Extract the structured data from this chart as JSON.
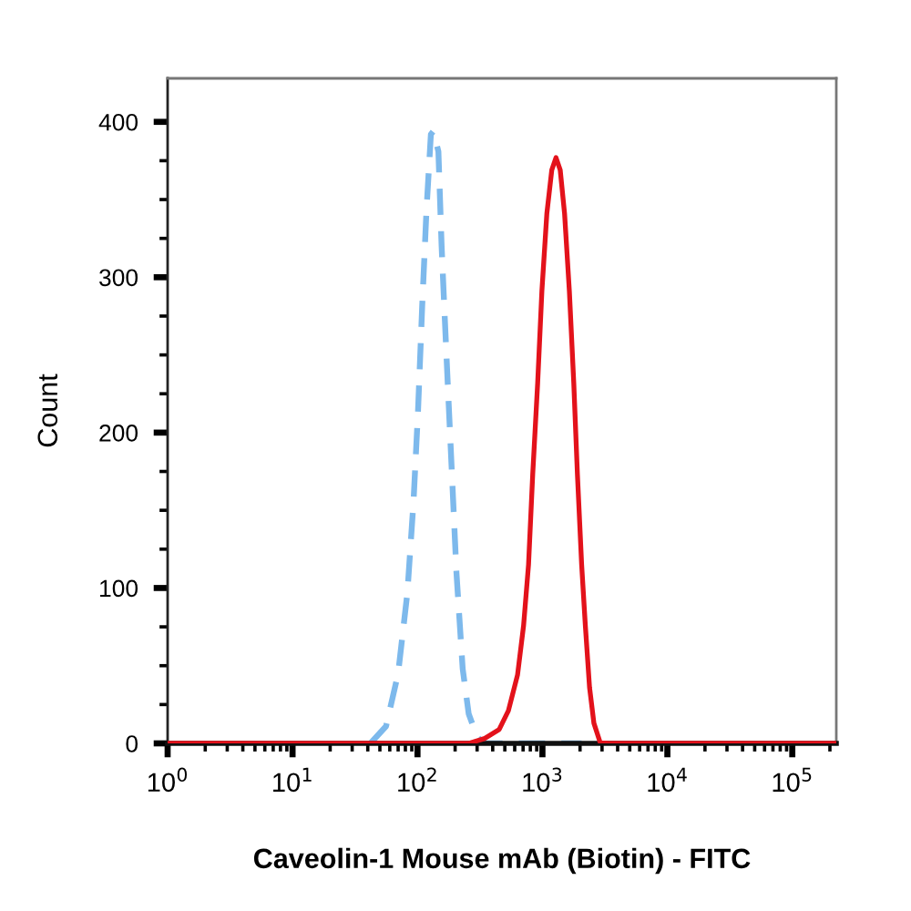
{
  "chart_data": {
    "type": "line",
    "xlabel": "Caveolin-1 Mouse mAb (Biotin) - FITC",
    "ylabel": "Count",
    "log": "x",
    "xlim": [
      1,
      225000
    ],
    "ylim": [
      0,
      428
    ],
    "xticks": [
      {
        "value": 1,
        "label": "10$^{0}$"
      },
      {
        "value": 2,
        "label": null
      },
      {
        "value": 3,
        "label": null
      },
      {
        "value": 4,
        "label": null
      },
      {
        "value": 5,
        "label": null
      },
      {
        "value": 6,
        "label": null
      },
      {
        "value": 7,
        "label": null
      },
      {
        "value": 8,
        "label": null
      },
      {
        "value": 9,
        "label": null
      },
      {
        "value": 10,
        "label": "10$^{1}$"
      },
      {
        "value": 20,
        "label": null
      },
      {
        "value": 30,
        "label": null
      },
      {
        "value": 40,
        "label": null
      },
      {
        "value": 50,
        "label": null
      },
      {
        "value": 60,
        "label": null
      },
      {
        "value": 70,
        "label": null
      },
      {
        "value": 80,
        "label": null
      },
      {
        "value": 90,
        "label": null
      },
      {
        "value": 100,
        "label": "10$^{2}$"
      },
      {
        "value": 200,
        "label": null
      },
      {
        "value": 300,
        "label": null
      },
      {
        "value": 400,
        "label": null
      },
      {
        "value": 500,
        "label": null
      },
      {
        "value": 600,
        "label": null
      },
      {
        "value": 700,
        "label": null
      },
      {
        "value": 800,
        "label": null
      },
      {
        "value": 900,
        "label": null
      },
      {
        "value": 1000,
        "label": "10$^{3}$"
      },
      {
        "value": 2000,
        "label": null
      },
      {
        "value": 3000,
        "label": null
      },
      {
        "value": 4000,
        "label": null
      },
      {
        "value": 5000,
        "label": null
      },
      {
        "value": 6000,
        "label": null
      },
      {
        "value": 7000,
        "label": null
      },
      {
        "value": 8000,
        "label": null
      },
      {
        "value": 9000,
        "label": null
      },
      {
        "value": 10000,
        "label": "10$^{4}$"
      },
      {
        "value": 20000,
        "label": null
      },
      {
        "value": 30000,
        "label": null
      },
      {
        "value": 40000,
        "label": null
      },
      {
        "value": 50000,
        "label": null
      },
      {
        "value": 60000,
        "label": null
      },
      {
        "value": 70000,
        "label": null
      },
      {
        "value": 80000,
        "label": null
      },
      {
        "value": 90000,
        "label": null
      },
      {
        "value": 100000,
        "label": "10$^{5}$"
      },
      {
        "value": 200000,
        "label": null
      }
    ],
    "yticks": [
      0,
      {
        "value": 25,
        "label": null
      },
      {
        "value": 50,
        "label": null
      },
      {
        "value": 75,
        "label": null
      },
      100,
      {
        "value": 125,
        "label": null
      },
      {
        "value": 150,
        "label": null
      },
      {
        "value": 175,
        "label": null
      },
      200,
      {
        "value": 225,
        "label": null
      },
      {
        "value": 250,
        "label": null
      },
      {
        "value": 275,
        "label": null
      },
      300,
      {
        "value": 325,
        "label": null
      },
      {
        "value": 350,
        "label": null
      },
      {
        "value": 375,
        "label": null
      },
      400
    ],
    "series": [
      {
        "color": "#7db9ec",
        "line_style": "dashed",
        "x": [
          42,
          56,
          70,
          83,
          93,
          101,
          109,
          118,
          128,
          134,
          147,
          156,
          164,
          175,
          189,
          205,
          230,
          257,
          301,
          344,
          2060
        ],
        "values": [
          0,
          11,
          45,
          97,
          156,
          214,
          281,
          343,
          392,
          394,
          381,
          320,
          280,
          230,
          172,
          110,
          48,
          19,
          4,
          0,
          0
        ]
      },
      {
        "color": "#e3121b",
        "line_style": "solid",
        "x": [
          1,
          257,
          341,
          451,
          534,
          632,
          707,
          774,
          836,
          916,
          990,
          1085,
          1188,
          1284,
          1388,
          1504,
          1643,
          1782,
          1906,
          2060,
          2205,
          2383,
          2583,
          2886,
          3418,
          225000
        ],
        "values": [
          0,
          0,
          3,
          9,
          21,
          44,
          76,
          115,
          173,
          232,
          291,
          341,
          369,
          377,
          369,
          341,
          291,
          232,
          173,
          115,
          76,
          36,
          13,
          1,
          0,
          0
        ]
      }
    ]
  }
}
